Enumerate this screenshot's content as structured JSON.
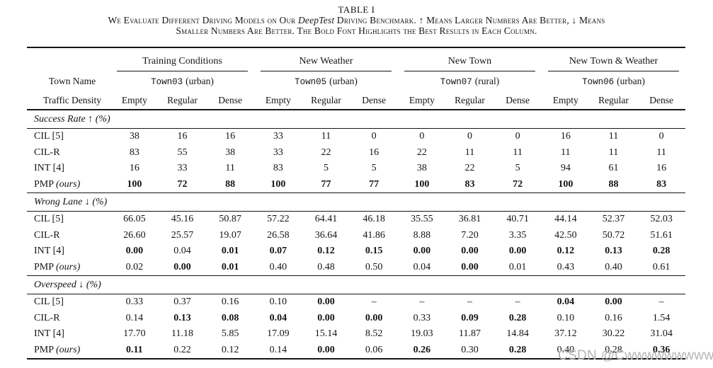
{
  "page": {
    "title": "TABLE I",
    "caption": {
      "line1_pre": "We Evaluate Different Driving Models on Our ",
      "line1_italic": "DeepTest",
      "line1_post": " Driving Benchmark. ↑ Means Larger Numbers Are Better, ↓ Means",
      "line2": "Smaller Numbers Are Better. The Bold Font Highlights the Best Results in Each Column."
    }
  },
  "watermark": "CSDN @Cwwwwwwwwws",
  "table": {
    "corner_labels": {
      "town_name": "Town Name",
      "traffic_density": "Traffic Density"
    },
    "groups": [
      {
        "label": "Training Conditions",
        "town": "Town03",
        "town_kind": "(urban)"
      },
      {
        "label": "New Weather",
        "town": "Town05",
        "town_kind": "(urban)"
      },
      {
        "label": "New Town",
        "town": "Town07",
        "town_kind": "(rural)"
      },
      {
        "label": "New Town & Weather",
        "town": "Town06",
        "town_kind": "(urban)"
      }
    ],
    "density_labels": [
      "Empty",
      "Regular",
      "Dense"
    ],
    "sections": [
      {
        "header": "Success Rate ↑ (%)",
        "rows": [
          {
            "model": "CIL [5]",
            "suffix": "",
            "values": [
              "38",
              "16",
              "16",
              "33",
              "11",
              "0",
              "0",
              "0",
              "0",
              "16",
              "11",
              "0"
            ],
            "bold": [
              0,
              0,
              0,
              0,
              0,
              0,
              0,
              0,
              0,
              0,
              0,
              0
            ]
          },
          {
            "model": "CIL-R",
            "suffix": "",
            "values": [
              "83",
              "55",
              "38",
              "33",
              "22",
              "16",
              "22",
              "11",
              "11",
              "11",
              "11",
              "11"
            ],
            "bold": [
              0,
              0,
              0,
              0,
              0,
              0,
              0,
              0,
              0,
              0,
              0,
              0
            ]
          },
          {
            "model": "INT [4]",
            "suffix": "",
            "values": [
              "16",
              "33",
              "11",
              "83",
              "5",
              "5",
              "38",
              "22",
              "5",
              "94",
              "61",
              "16"
            ],
            "bold": [
              0,
              0,
              0,
              0,
              0,
              0,
              0,
              0,
              0,
              0,
              0,
              0
            ]
          },
          {
            "model": "PMP ",
            "suffix": "(ours)",
            "values": [
              "100",
              "72",
              "88",
              "100",
              "77",
              "77",
              "100",
              "83",
              "72",
              "100",
              "88",
              "83"
            ],
            "bold": [
              1,
              1,
              1,
              1,
              1,
              1,
              1,
              1,
              1,
              1,
              1,
              1
            ]
          }
        ]
      },
      {
        "header": "Wrong Lane ↓ (%)",
        "rows": [
          {
            "model": "CIL [5]",
            "suffix": "",
            "values": [
              "66.05",
              "45.16",
              "50.87",
              "57.22",
              "64.41",
              "46.18",
              "35.55",
              "36.81",
              "40.71",
              "44.14",
              "52.37",
              "52.03"
            ],
            "bold": [
              0,
              0,
              0,
              0,
              0,
              0,
              0,
              0,
              0,
              0,
              0,
              0
            ]
          },
          {
            "model": "CIL-R",
            "suffix": "",
            "values": [
              "26.60",
              "25.57",
              "19.07",
              "26.58",
              "36.64",
              "41.86",
              "8.88",
              "7.20",
              "3.35",
              "42.50",
              "50.72",
              "51.61"
            ],
            "bold": [
              0,
              0,
              0,
              0,
              0,
              0,
              0,
              0,
              0,
              0,
              0,
              0
            ]
          },
          {
            "model": "INT [4]",
            "suffix": "",
            "values": [
              "0.00",
              "0.04",
              "0.01",
              "0.07",
              "0.12",
              "0.15",
              "0.00",
              "0.00",
              "0.00",
              "0.12",
              "0.13",
              "0.28"
            ],
            "bold": [
              1,
              0,
              1,
              1,
              1,
              1,
              1,
              1,
              1,
              1,
              1,
              1
            ]
          },
          {
            "model": "PMP ",
            "suffix": "(ours)",
            "values": [
              "0.02",
              "0.00",
              "0.01",
              "0.40",
              "0.48",
              "0.50",
              "0.04",
              "0.00",
              "0.01",
              "0.43",
              "0.40",
              "0.61"
            ],
            "bold": [
              0,
              1,
              1,
              0,
              0,
              0,
              0,
              1,
              0,
              0,
              0,
              0
            ]
          }
        ]
      },
      {
        "header": "Overspeed ↓ (%)",
        "rows": [
          {
            "model": "CIL [5]",
            "suffix": "",
            "values": [
              "0.33",
              "0.37",
              "0.16",
              "0.10",
              "0.00",
              "–",
              "–",
              "–",
              "–",
              "0.04",
              "0.00",
              "–"
            ],
            "bold": [
              0,
              0,
              0,
              0,
              1,
              0,
              0,
              0,
              0,
              1,
              1,
              0
            ]
          },
          {
            "model": "CIL-R",
            "suffix": "",
            "values": [
              "0.14",
              "0.13",
              "0.08",
              "0.04",
              "0.00",
              "0.00",
              "0.33",
              "0.09",
              "0.28",
              "0.10",
              "0.16",
              "1.54"
            ],
            "bold": [
              0,
              1,
              1,
              1,
              1,
              1,
              0,
              1,
              1,
              0,
              0,
              0
            ]
          },
          {
            "model": "INT [4]",
            "suffix": "",
            "values": [
              "17.70",
              "11.18",
              "5.85",
              "17.09",
              "15.14",
              "8.52",
              "19.03",
              "11.87",
              "14.84",
              "37.12",
              "30.22",
              "31.04"
            ],
            "bold": [
              0,
              0,
              0,
              0,
              0,
              0,
              0,
              0,
              0,
              0,
              0,
              0
            ]
          },
          {
            "model": "PMP ",
            "suffix": "(ours)",
            "values": [
              "0.11",
              "0.22",
              "0.12",
              "0.14",
              "0.00",
              "0.06",
              "0.26",
              "0.30",
              "0.28",
              "0.40",
              "0.28",
              "0.36"
            ],
            "bold": [
              1,
              0,
              0,
              0,
              1,
              0,
              1,
              0,
              1,
              0,
              0,
              1
            ]
          }
        ]
      }
    ]
  }
}
